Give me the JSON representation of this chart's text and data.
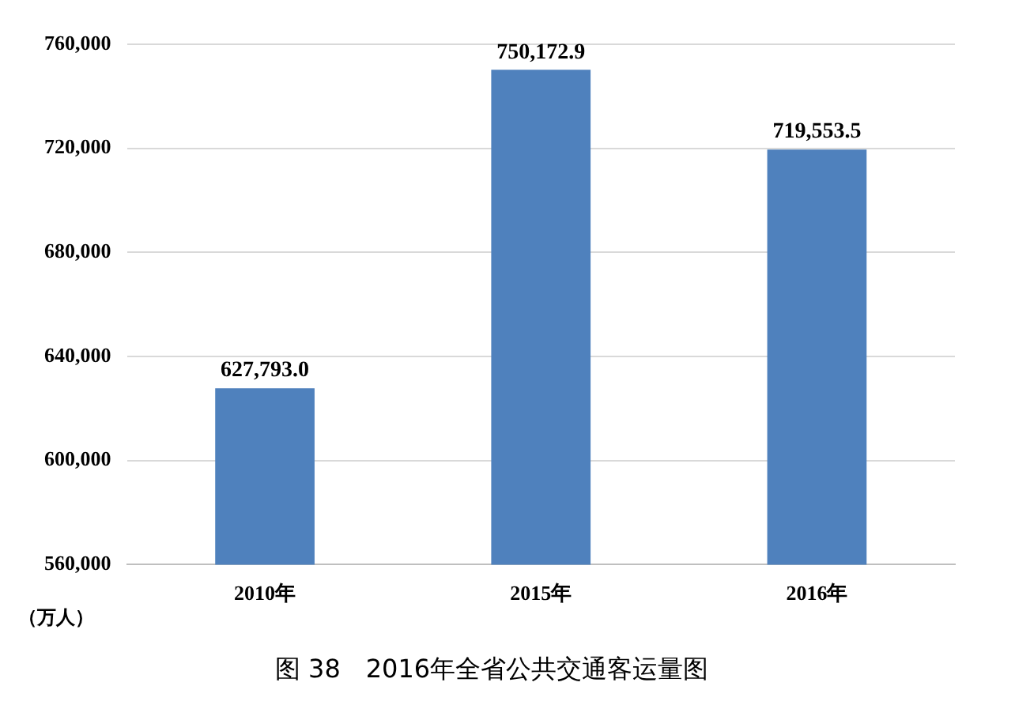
{
  "chart_data": {
    "type": "bar",
    "title": "图 38　2016年全省公共交通客运量图",
    "ylabel": "（万人）",
    "categories": [
      "2010年",
      "2015年",
      "2016年"
    ],
    "values": [
      627793.0,
      750172.9,
      719553.5
    ],
    "value_labels": [
      "627,793.0",
      "750,172.9",
      "719,553.5"
    ],
    "color": "#4f81bd",
    "ylim": [
      560000,
      760000
    ],
    "yticks": [
      "560,000",
      "600,000",
      "640,000",
      "680,000",
      "720,000",
      "760,000"
    ],
    "grid": "y"
  }
}
